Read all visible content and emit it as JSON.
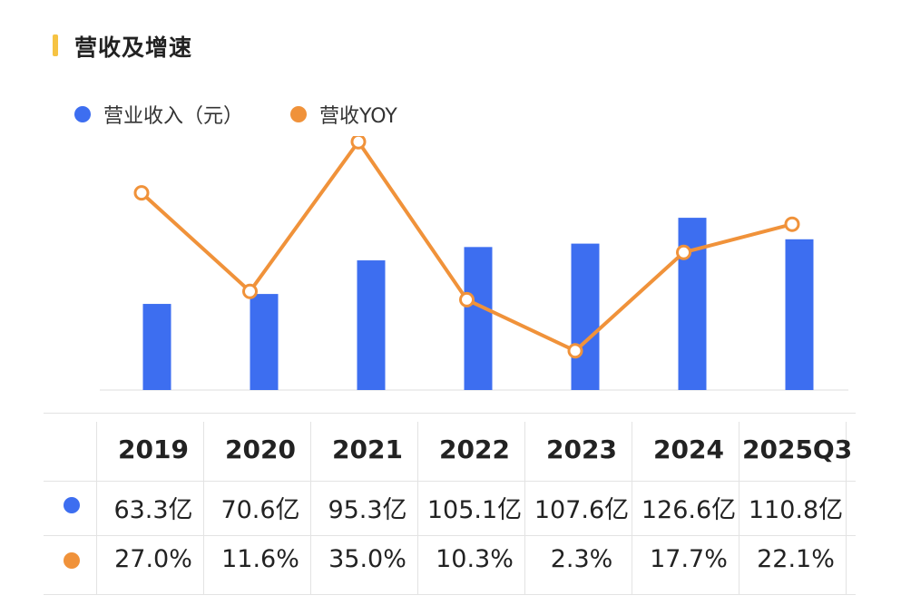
{
  "header": {
    "title": "营收及增速"
  },
  "colors": {
    "accent": "#f6c343",
    "bar": "#3d6ef0",
    "line": "#f0923a"
  },
  "legend": {
    "bar_label": "营业收入（元）",
    "line_label": "营收YOY"
  },
  "chart_data": {
    "type": "bar",
    "categories": [
      "2019",
      "2020",
      "2021",
      "2022",
      "2023",
      "2024",
      "2025Q3"
    ],
    "series": [
      {
        "name": "营业收入（元）",
        "type": "bar",
        "values": [
          63.3,
          70.6,
          95.3,
          105.1,
          107.6,
          126.6,
          110.8
        ],
        "unit": "亿"
      },
      {
        "name": "营收YOY",
        "type": "line",
        "values": [
          27.0,
          11.6,
          35.0,
          10.3,
          2.3,
          17.7,
          22.1
        ],
        "unit": "%"
      }
    ]
  },
  "table": {
    "headers": [
      "2019",
      "2020",
      "2021",
      "2022",
      "2023",
      "2024",
      "2025Q3"
    ],
    "revenue": [
      "63.3亿",
      "70.6亿",
      "95.3亿",
      "105.1亿",
      "107.6亿",
      "126.6亿",
      "110.8亿"
    ],
    "yoy": [
      "27.0%",
      "11.6%",
      "35.0%",
      "10.3%",
      "2.3%",
      "17.7%",
      "22.1%"
    ]
  }
}
